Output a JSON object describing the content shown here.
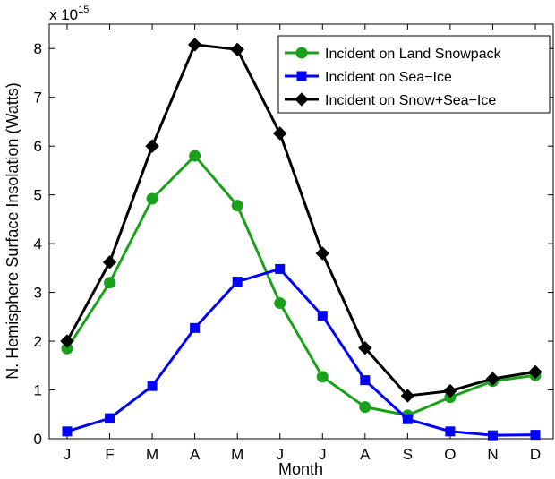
{
  "chart_data": {
    "type": "line",
    "title": "",
    "xlabel": "Month",
    "ylabel": "N. Hemisphere Surface Insolation (Watts)",
    "y_multiplier": {
      "base": "x 10",
      "exponent": "15"
    },
    "categories": [
      "J",
      "F",
      "M",
      "A",
      "M",
      "J",
      "J",
      "A",
      "S",
      "O",
      "N",
      "D"
    ],
    "ylim": [
      0,
      8.5
    ],
    "yticks": [
      0,
      1,
      2,
      3,
      4,
      5,
      6,
      7,
      8
    ],
    "grid": false,
    "legend_position": "top-right",
    "series": [
      {
        "name": "Incident on Land Snowpack",
        "color": "#1aa01a",
        "marker": "circle",
        "values": [
          1.85,
          3.2,
          4.92,
          5.8,
          4.78,
          2.78,
          1.27,
          0.65,
          0.48,
          0.85,
          1.18,
          1.3
        ]
      },
      {
        "name": "Incident on Sea−Ice",
        "color": "#0000ff",
        "marker": "square",
        "values": [
          0.15,
          0.42,
          1.08,
          2.27,
          3.22,
          3.48,
          2.52,
          1.2,
          0.4,
          0.15,
          0.07,
          0.08
        ]
      },
      {
        "name": "Incident on Snow+Sea−Ice",
        "color": "#000000",
        "marker": "diamond",
        "values": [
          2.0,
          3.62,
          6.0,
          8.08,
          7.98,
          6.26,
          3.8,
          1.86,
          0.88,
          0.98,
          1.23,
          1.37
        ]
      }
    ]
  }
}
